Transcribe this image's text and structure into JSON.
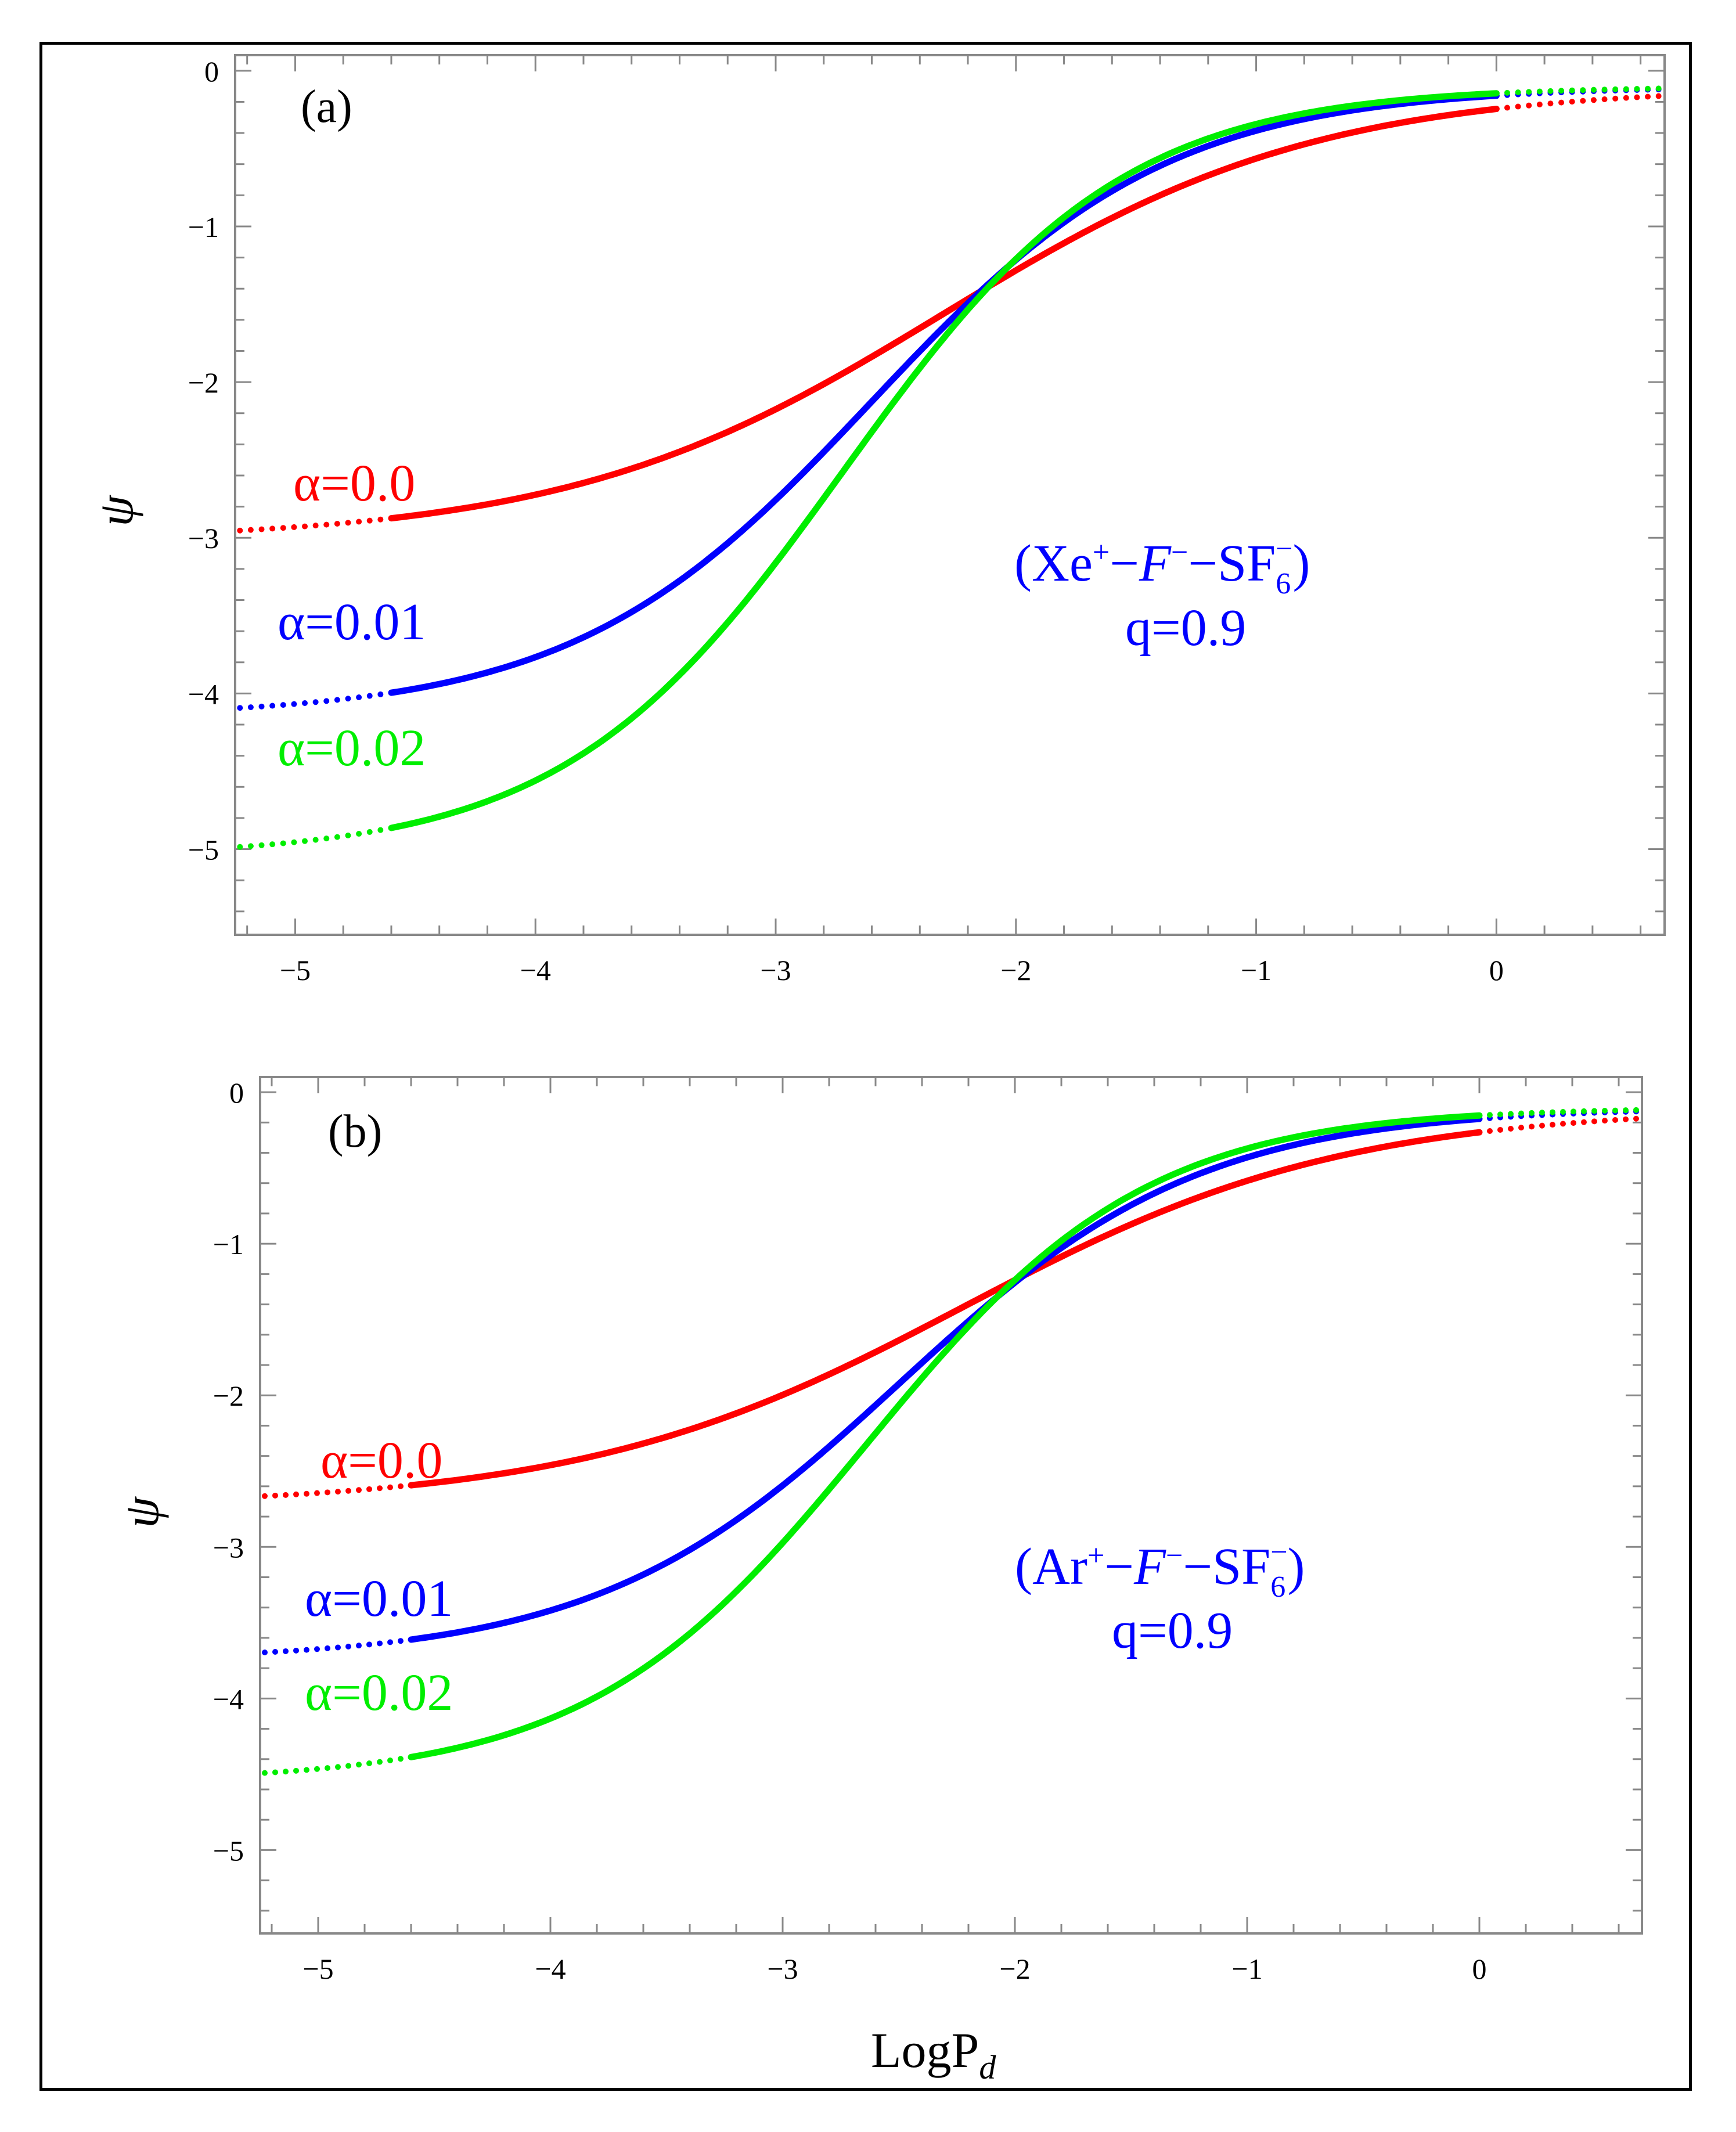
{
  "chart_data": [
    {
      "type": "line",
      "panel": "(a)",
      "title": "",
      "xlabel": "",
      "ylabel": "ψ",
      "xlim": [
        -5.25,
        0.7
      ],
      "ylim": [
        -5.55,
        0.1
      ],
      "xticks": [
        -5,
        -4,
        -3,
        -2,
        -1,
        0
      ],
      "xtick_labels": [
        "−5",
        "−4",
        "−3",
        "−2",
        "−1",
        "0"
      ],
      "yticks": [
        0,
        -1,
        -2,
        -3,
        -4,
        -5
      ],
      "ytick_labels": [
        "0",
        "−1",
        "−2",
        "−3",
        "−4",
        "−5"
      ],
      "annotation": {
        "system_prefix": "(Xe",
        "system_ion": "+",
        "system_mid": "−",
        "system_f": "F",
        "system_f_sup": "−",
        "system_mid2": "−SF",
        "system_sub": "6",
        "system_sup2": "−",
        "system_suffix": ")",
        "q_text": "q=0.9"
      },
      "series": [
        {
          "name": "α=0.0",
          "color": "#ff0000",
          "psi0": -3.02,
          "center": -2.3,
          "width": 0.78
        },
        {
          "name": "α=0.01",
          "color": "#0000ff",
          "psi0": -4.15,
          "center": -2.6,
          "width": 0.62
        },
        {
          "name": "α=0.02",
          "color": "#00ee00",
          "psi0": -5.05,
          "center": -2.72,
          "width": 0.58
        }
      ],
      "labels": [
        "α=0.0",
        "α=0.01",
        "α=0.02"
      ]
    },
    {
      "type": "line",
      "panel": "(b)",
      "title": "",
      "xlabel": "LogP",
      "xlabel_sub": "d",
      "ylabel": "ψ",
      "xlim": [
        -5.25,
        0.7
      ],
      "ylim": [
        -5.55,
        0.1
      ],
      "xticks": [
        -5,
        -4,
        -3,
        -2,
        -1,
        0
      ],
      "xtick_labels": [
        "−5",
        "−4",
        "−3",
        "−2",
        "−1",
        "0"
      ],
      "yticks": [
        0,
        -1,
        -2,
        -3,
        -4,
        -5
      ],
      "ytick_labels": [
        "0",
        "−1",
        "−2",
        "−3",
        "−4",
        "−5"
      ],
      "annotation": {
        "system_prefix": "(Ar",
        "system_ion": "+",
        "system_mid": "−",
        "system_f": "F",
        "system_f_sup": "−",
        "system_mid2": "−SF",
        "system_sub": "6",
        "system_sup2": "−",
        "system_suffix": ")",
        "q_text": "q=0.9"
      },
      "series": [
        {
          "name": "α=0.0",
          "color": "#ff0000",
          "psi0": -2.73,
          "center": -2.22,
          "width": 0.82
        },
        {
          "name": "α=0.01",
          "color": "#0000ff",
          "psi0": -3.75,
          "center": -2.5,
          "width": 0.65
        },
        {
          "name": "α=0.02",
          "color": "#00ee00",
          "psi0": -4.55,
          "center": -2.64,
          "width": 0.6
        }
      ],
      "labels": [
        "α=0.0",
        "α=0.01",
        "α=0.02"
      ]
    }
  ]
}
